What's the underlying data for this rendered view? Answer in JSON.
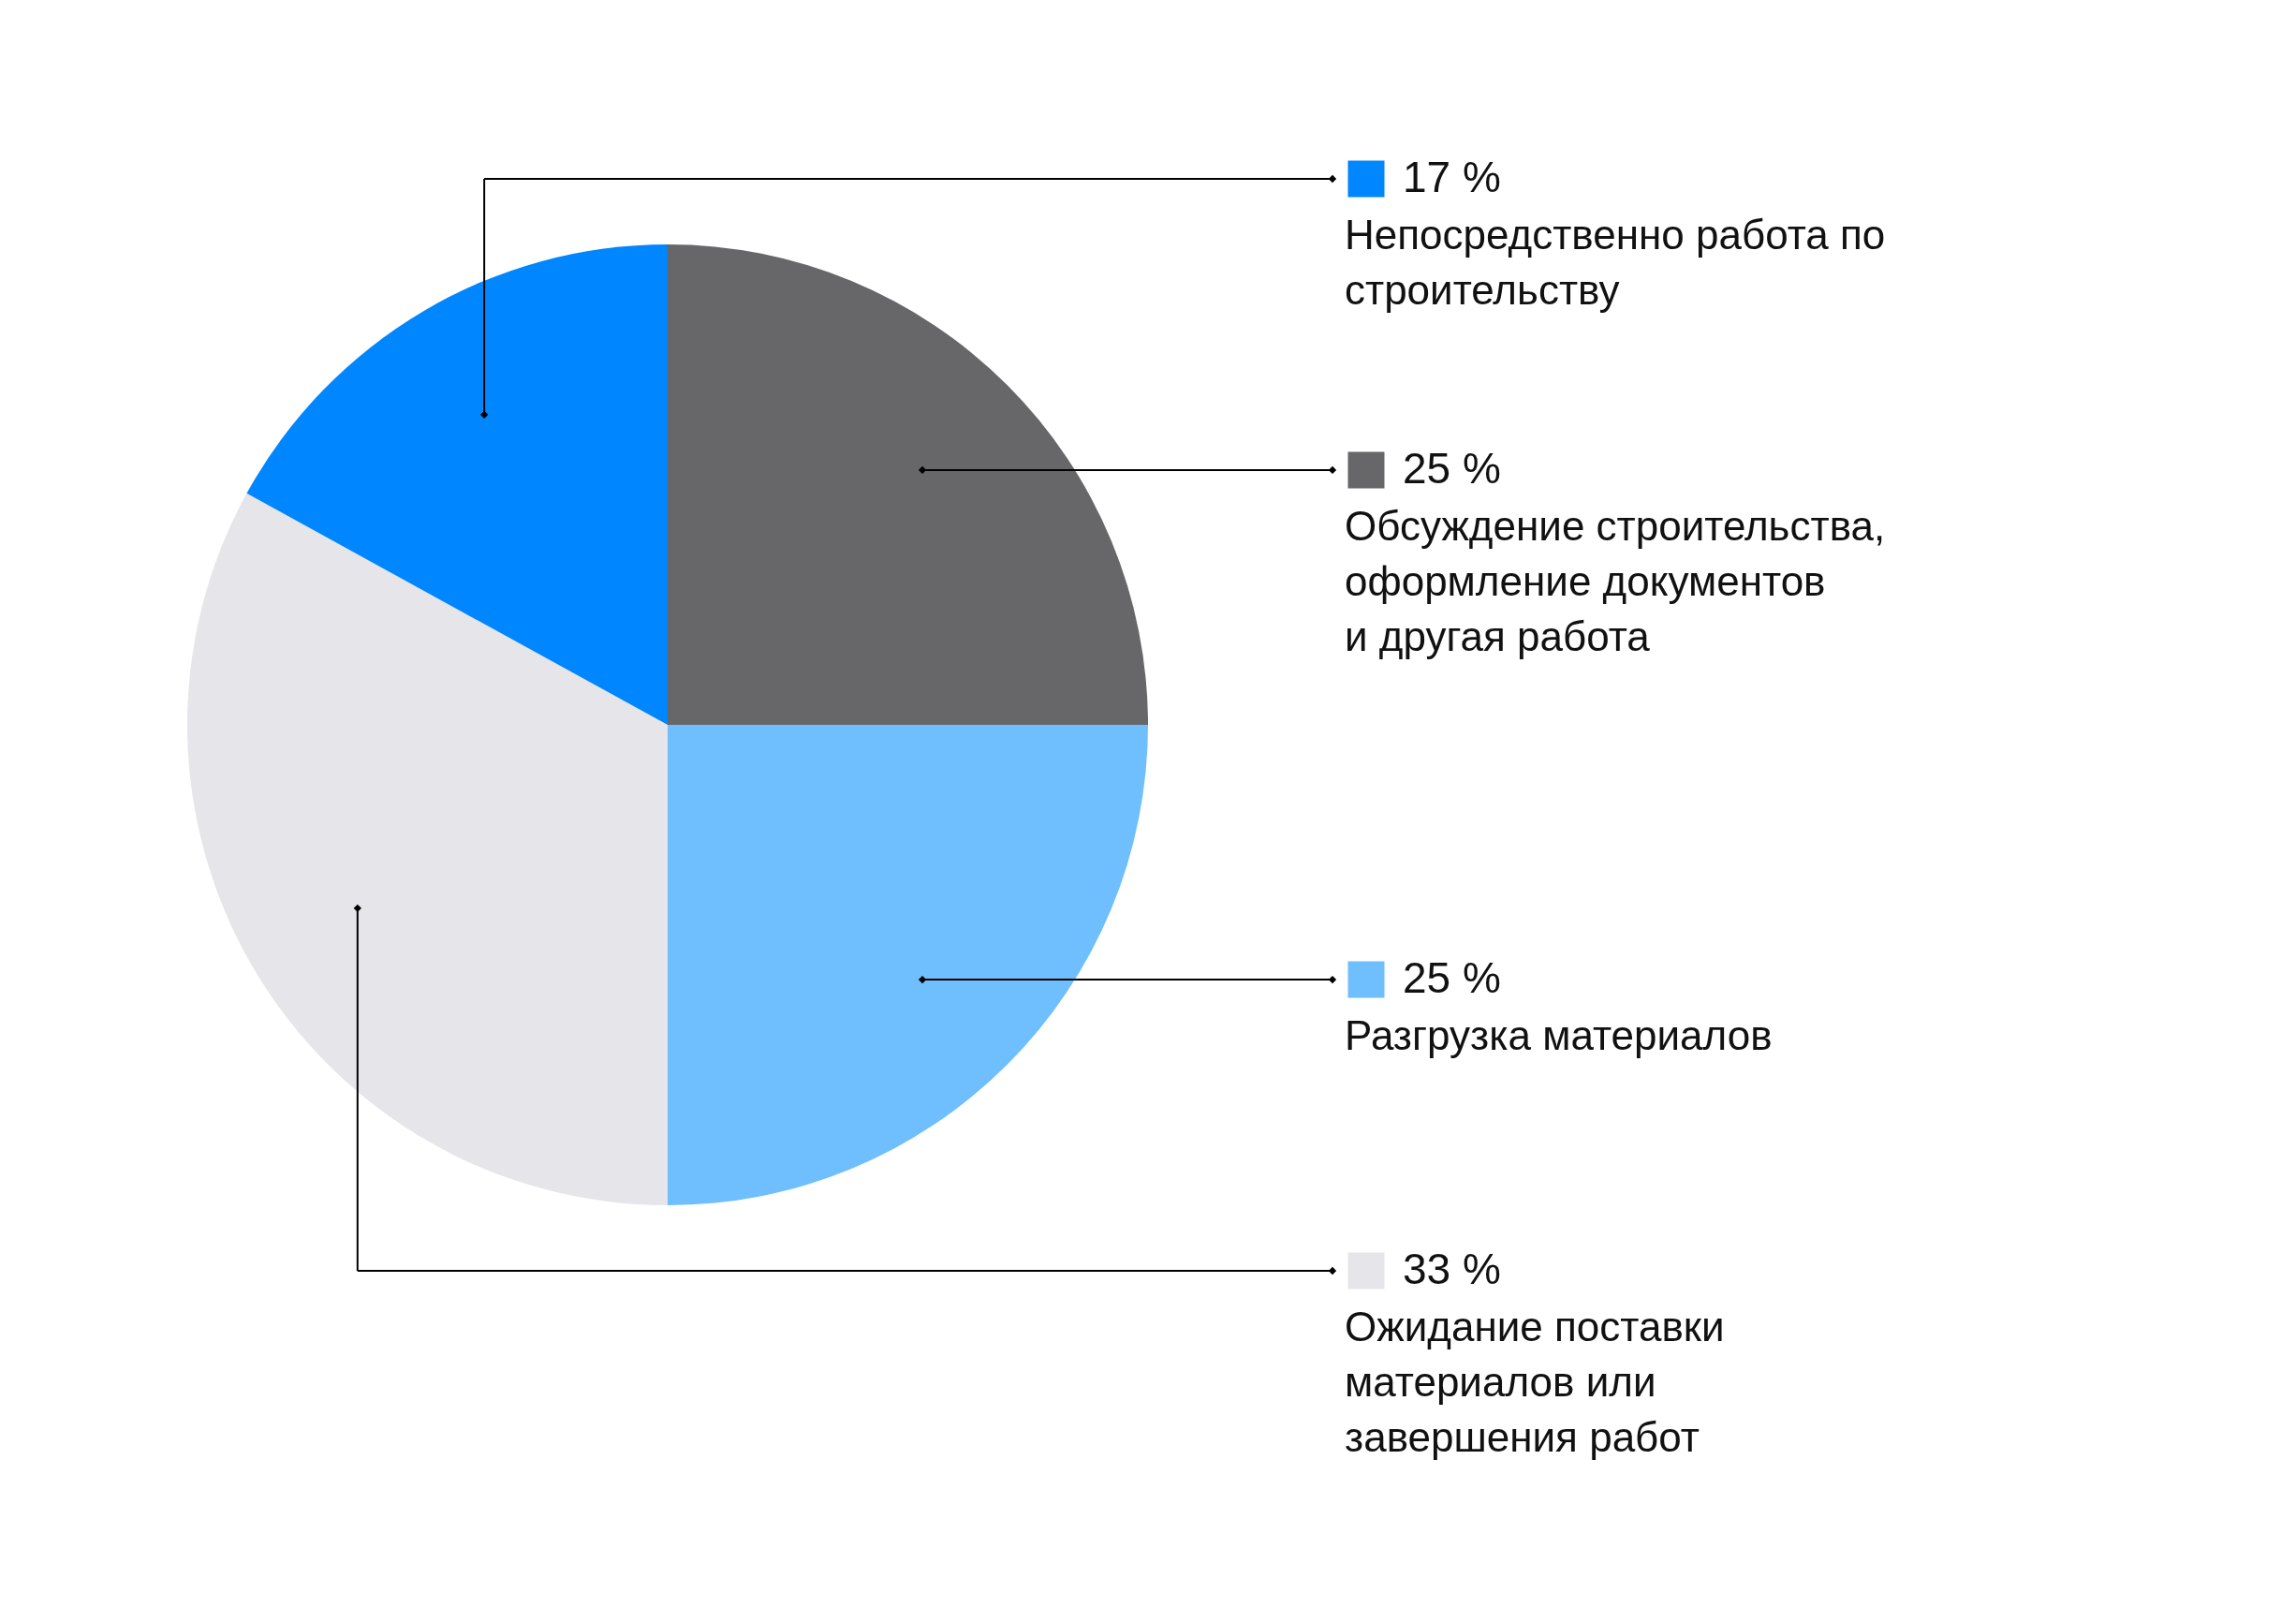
{
  "chart_data": {
    "type": "pie",
    "categories": [
      "Обсуждение строительства,\nоформление документов\nи другая работа",
      "Разгрузка материалов",
      "Ожидание поставки\nматериалов или\nзавершения работ",
      "Непосредственно работа по\nстроительству"
    ],
    "values": [
      25,
      25,
      33,
      17
    ],
    "colors": [
      "#676668",
      "#6fbefe",
      "#e6e5e9",
      "#0086fe"
    ],
    "value_labels": [
      "25 %",
      "25 %",
      "33 %",
      "17 %"
    ],
    "legend": "right"
  }
}
